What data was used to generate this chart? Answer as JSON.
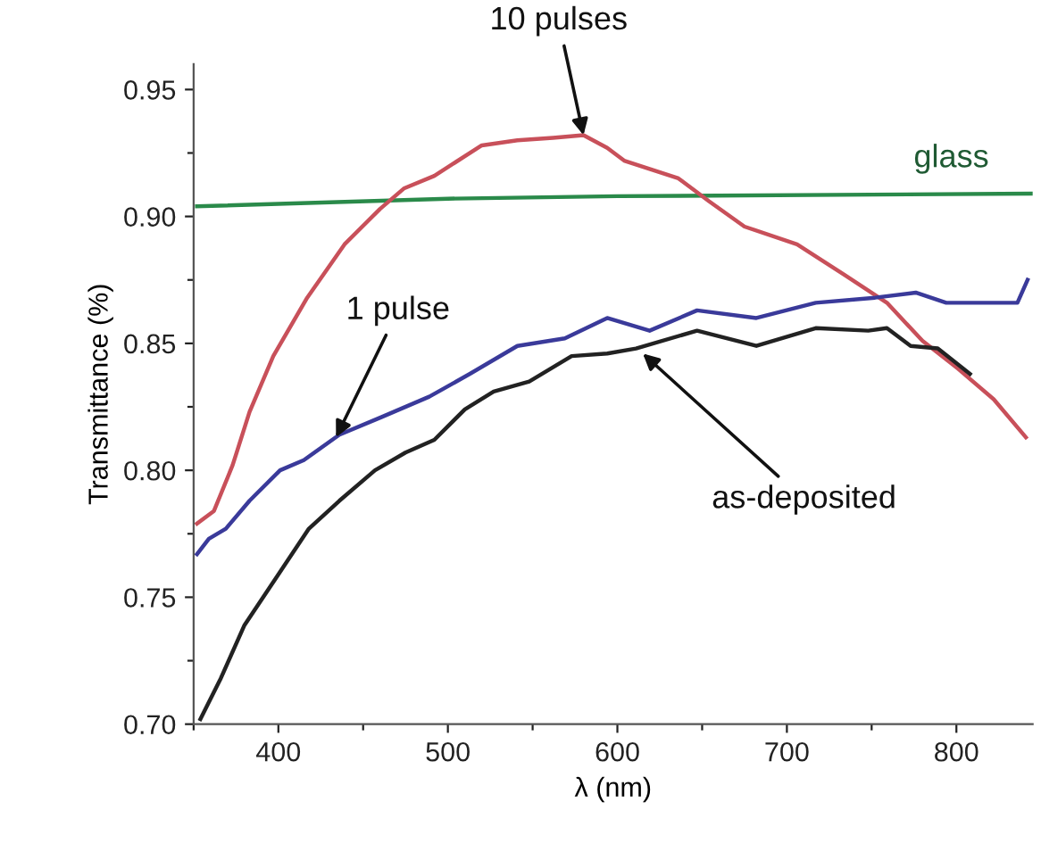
{
  "chart_data": {
    "type": "line",
    "xlabel": "λ (nm)",
    "ylabel": "Transmittance (%)",
    "xlim": [
      350,
      845
    ],
    "ylim": [
      0.7,
      0.96
    ],
    "xticks": [
      {
        "value": 350,
        "label": null
      },
      400,
      {
        "value": 450,
        "label": null
      },
      500,
      {
        "value": 550,
        "label": null
      },
      600,
      {
        "value": 650,
        "label": null
      },
      700,
      {
        "value": 750,
        "label": null
      },
      800
    ],
    "yticks": [
      {
        "value": 0.7,
        "label": "0.70"
      },
      {
        "value": 0.725,
        "label": null
      },
      {
        "value": 0.75,
        "label": "0.75"
      },
      {
        "value": 0.775,
        "label": null
      },
      {
        "value": 0.8,
        "label": "0.80"
      },
      {
        "value": 0.825,
        "label": null
      },
      {
        "value": 0.85,
        "label": "0.85"
      },
      {
        "value": 0.875,
        "label": null
      },
      {
        "value": 0.9,
        "label": "0.90"
      },
      {
        "value": 0.925,
        "label": null
      },
      {
        "value": 0.95,
        "label": "0.95"
      }
    ],
    "grid": false,
    "marker": "none",
    "line_style": "solid",
    "series": [
      {
        "color": "#2a8a4a",
        "x": [
          352,
          500,
          600,
          845
        ],
        "values": [
          0.904,
          0.907,
          0.908,
          0.909
        ]
      },
      {
        "color": "#c8505a",
        "x": [
          352,
          362,
          373,
          383,
          397,
          417,
          439,
          460,
          474,
          492,
          520,
          541,
          562,
          580,
          594,
          604,
          636,
          654,
          675,
          706,
          734,
          759,
          780,
          801,
          822,
          841
        ],
        "values": [
          0.779,
          0.784,
          0.802,
          0.823,
          0.845,
          0.868,
          0.889,
          0.903,
          0.911,
          0.916,
          0.928,
          0.93,
          0.931,
          0.932,
          0.927,
          0.922,
          0.915,
          0.906,
          0.896,
          0.889,
          0.877,
          0.866,
          0.851,
          0.84,
          0.828,
          0.813
        ]
      },
      {
        "color": "#3a3a9a",
        "x": [
          352,
          359,
          369,
          383,
          401,
          415,
          436,
          461,
          489,
          513,
          541,
          569,
          594,
          619,
          647,
          682,
          717,
          752,
          776,
          794,
          822,
          836,
          842
        ],
        "values": [
          0.767,
          0.773,
          0.777,
          0.788,
          0.8,
          0.804,
          0.814,
          0.821,
          0.829,
          0.838,
          0.849,
          0.852,
          0.86,
          0.855,
          0.863,
          0.86,
          0.866,
          0.868,
          0.87,
          0.866,
          0.866,
          0.866,
          0.875
        ]
      },
      {
        "color": "#222222",
        "x": [
          354,
          366,
          380,
          401,
          418,
          436,
          457,
          475,
          492,
          510,
          527,
          548,
          573,
          594,
          611,
          647,
          682,
          717,
          748,
          759,
          773,
          789,
          808
        ],
        "values": [
          0.702,
          0.718,
          0.739,
          0.76,
          0.777,
          0.788,
          0.8,
          0.807,
          0.812,
          0.824,
          0.831,
          0.835,
          0.845,
          0.846,
          0.848,
          0.855,
          0.849,
          0.856,
          0.855,
          0.856,
          0.849,
          0.848,
          0.838
        ]
      }
    ],
    "annotations": [
      {
        "text": "10 pulses",
        "x": 580,
        "y": 0.932
      },
      {
        "text": "glass",
        "x": 797,
        "y": 0.909
      },
      {
        "text": "1 pulse",
        "x": 434,
        "y": 0.813
      },
      {
        "text": "as-deposited",
        "x": 615,
        "y": 0.846
      }
    ]
  }
}
